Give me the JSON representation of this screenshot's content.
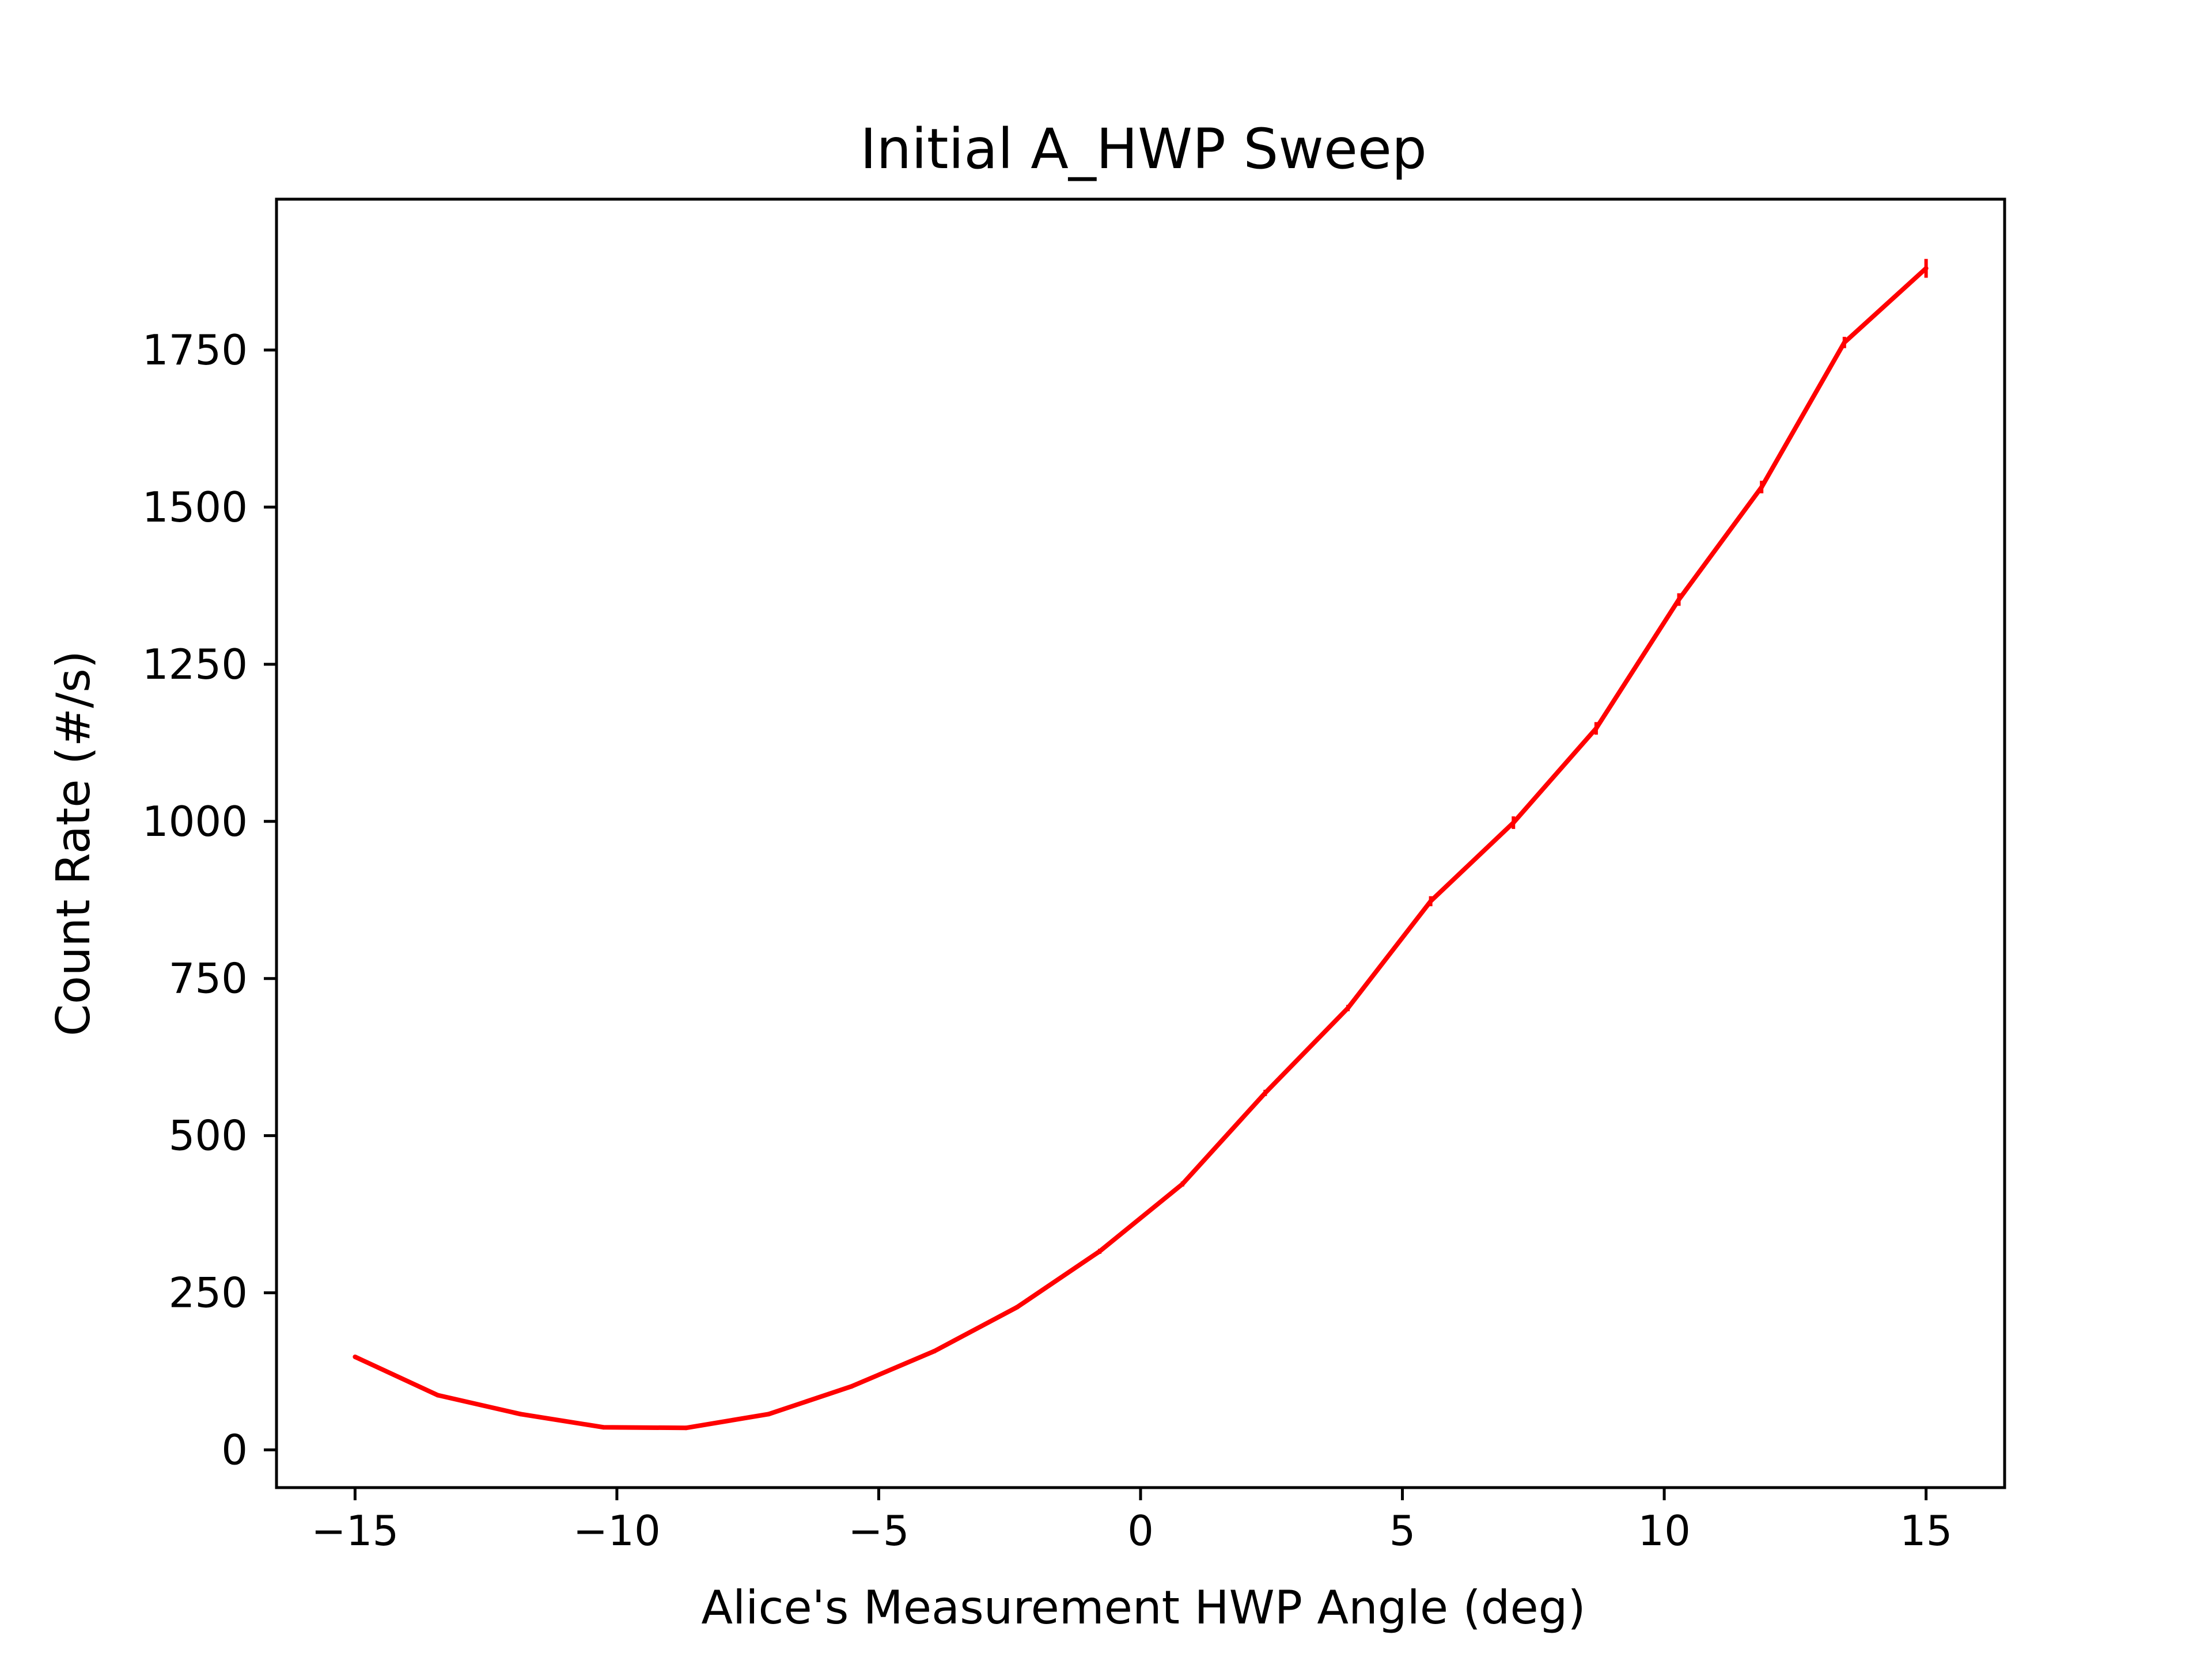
{
  "chart_data": {
    "type": "line",
    "title": "Initial A_HWP Sweep",
    "xlabel": "Alice's Measurement HWP Angle (deg)",
    "ylabel": "Count Rate (#/s)",
    "xlim": [
      -16.5,
      16.5
    ],
    "ylim": [
      -60,
      1990
    ],
    "xticks": [
      -15,
      -10,
      -5,
      0,
      5,
      10,
      15
    ],
    "xtick_labels": [
      "−15",
      "−10",
      "−5",
      "0",
      "5",
      "10",
      "15"
    ],
    "yticks": [
      0,
      250,
      500,
      750,
      1000,
      1250,
      1500,
      1750
    ],
    "ytick_labels": [
      "0",
      "250",
      "500",
      "750",
      "1000",
      "1250",
      "1500",
      "1750"
    ],
    "grid": false,
    "legend": false,
    "series": [
      {
        "color": "#ff0000",
        "x": [
          -15.0,
          -13.42,
          -11.84,
          -10.26,
          -8.68,
          -7.1,
          -5.52,
          -3.94,
          -2.36,
          -0.78,
          0.8,
          2.38,
          3.96,
          5.54,
          7.12,
          8.7,
          10.28,
          11.86,
          13.44,
          15.0
        ],
        "y": [
          148,
          87,
          57,
          36,
          35,
          57,
          101,
          157,
          227,
          316,
          423,
          568,
          703,
          873,
          998,
          1148,
          1353,
          1532,
          1762,
          1880
        ],
        "yerr": [
          2,
          2,
          2,
          2,
          2,
          2,
          2,
          3,
          3,
          4,
          4,
          5,
          5,
          8,
          10,
          10,
          10,
          10,
          9,
          15
        ]
      }
    ]
  }
}
